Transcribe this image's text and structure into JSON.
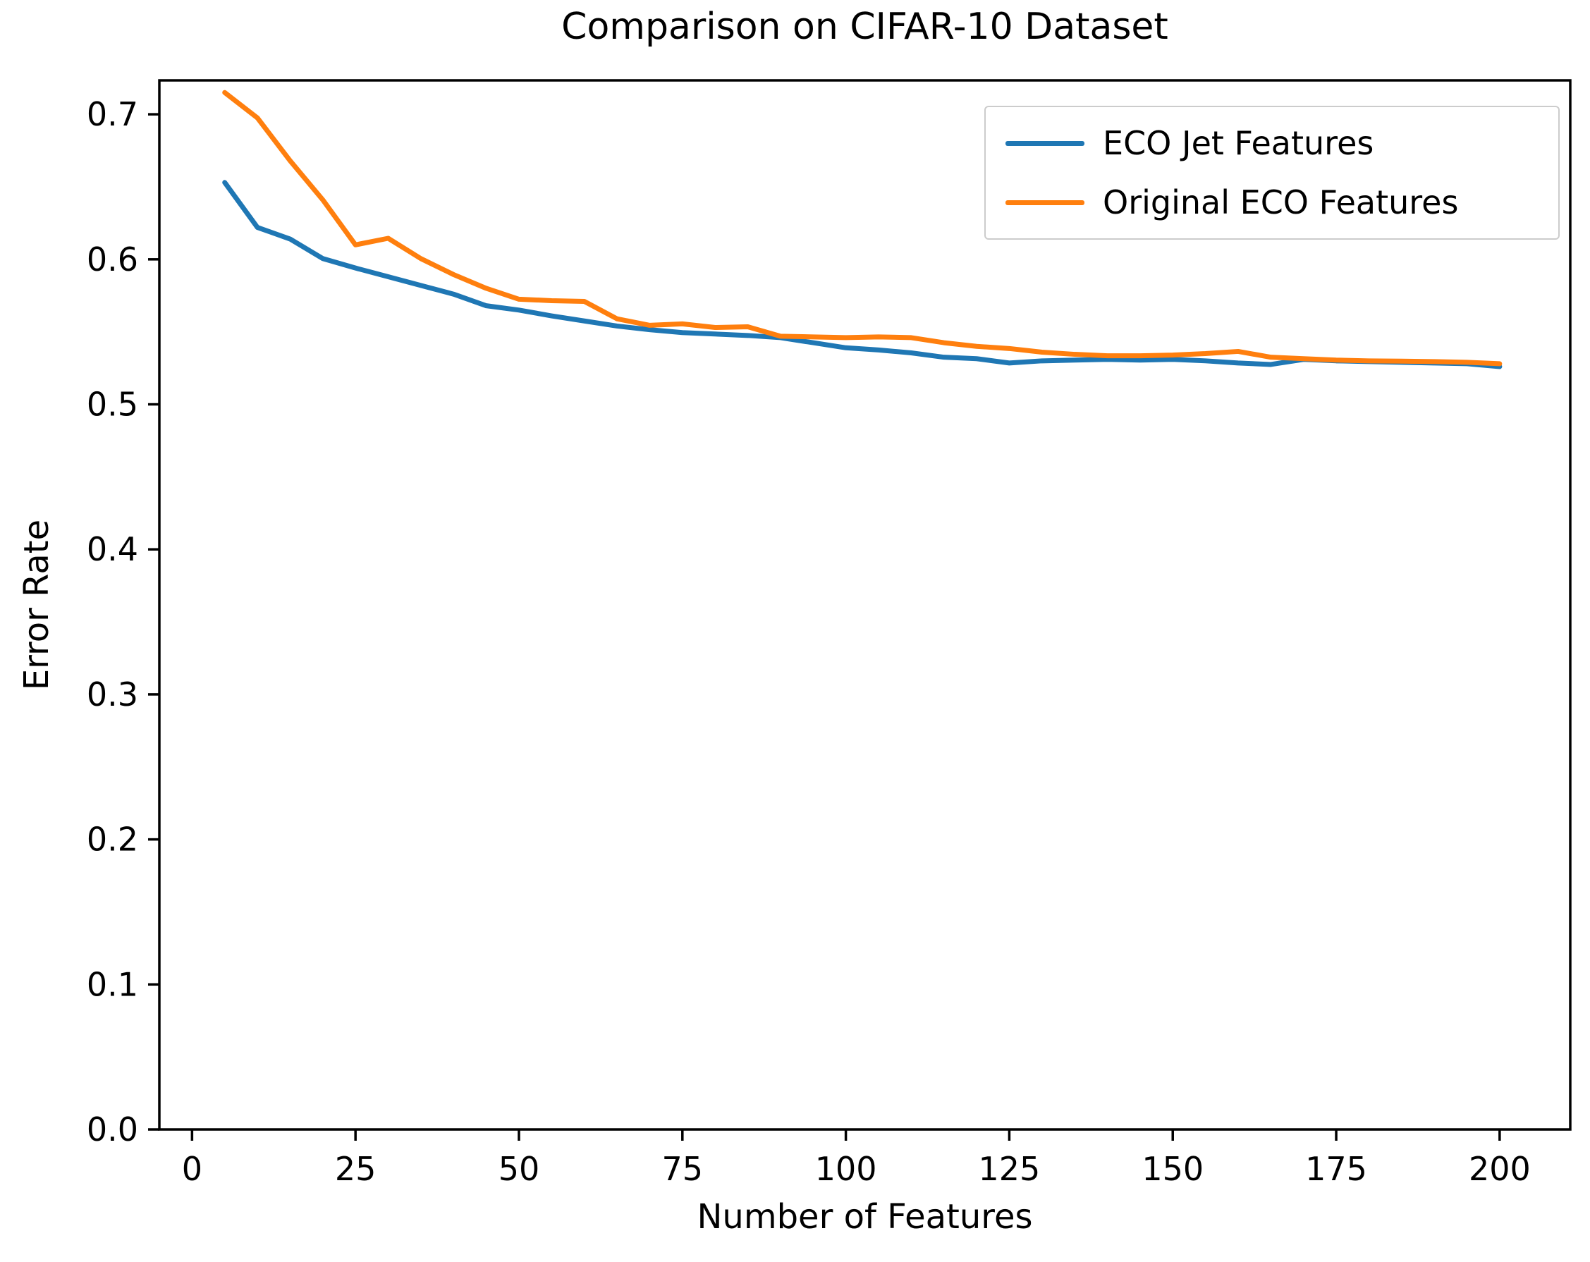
{
  "figure": {
    "background": "#ffffff",
    "text_color": "#000000",
    "axis_color": "#000000"
  },
  "chart_data": {
    "type": "line",
    "title": "Comparison on CIFAR-10 Dataset",
    "xlabel": "Number of Features",
    "ylabel": "Error Rate",
    "xlim": [
      -5,
      210.8
    ],
    "ylim": [
      0,
      0.7234
    ],
    "x_ticks": [
      0,
      25,
      50,
      75,
      100,
      125,
      150,
      175,
      200
    ],
    "y_ticks": [
      0.0,
      0.1,
      0.2,
      0.3,
      0.4,
      0.5,
      0.6,
      0.7
    ],
    "grid": false,
    "line_width": 7,
    "legend": {
      "position": "upper right",
      "entries": [
        "ECO Jet Features",
        "Original ECO Features"
      ]
    },
    "x": [
      5,
      10,
      15,
      20,
      25,
      30,
      35,
      40,
      45,
      50,
      55,
      60,
      65,
      70,
      75,
      80,
      85,
      90,
      95,
      100,
      105,
      110,
      115,
      120,
      125,
      130,
      135,
      140,
      145,
      150,
      155,
      160,
      165,
      170,
      175,
      180,
      185,
      190,
      195,
      200
    ],
    "series": [
      {
        "name": "ECO Jet Features",
        "color": "#1f77b4",
        "values": [
          0.653,
          0.622,
          0.614,
          0.6005,
          0.594,
          0.588,
          0.582,
          0.576,
          0.568,
          0.565,
          0.561,
          0.5575,
          0.554,
          0.5515,
          0.5495,
          0.5485,
          0.5475,
          0.546,
          0.5425,
          0.539,
          0.5375,
          0.5355,
          0.5325,
          0.5315,
          0.5285,
          0.53,
          0.5305,
          0.531,
          0.5305,
          0.531,
          0.53,
          0.5285,
          0.5275,
          0.531,
          0.53,
          0.5295,
          0.529,
          0.5285,
          0.528,
          0.526
        ]
      },
      {
        "name": "Original ECO Features",
        "color": "#ff7f0e",
        "values": [
          0.715,
          0.6975,
          0.668,
          0.641,
          0.61,
          0.6145,
          0.6005,
          0.5895,
          0.58,
          0.5725,
          0.5715,
          0.571,
          0.559,
          0.5545,
          0.5555,
          0.553,
          0.5535,
          0.547,
          0.5465,
          0.546,
          0.5465,
          0.546,
          0.5425,
          0.54,
          0.5385,
          0.536,
          0.5345,
          0.5335,
          0.5335,
          0.534,
          0.535,
          0.5365,
          0.5325,
          0.5315,
          0.5305,
          0.53,
          0.5298,
          0.5295,
          0.529,
          0.528
        ]
      }
    ]
  }
}
